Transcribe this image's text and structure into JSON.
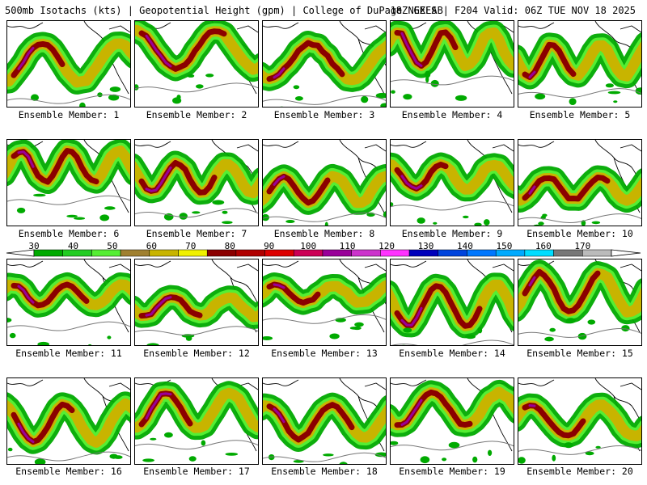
{
  "header": {
    "title_left": "500mb Isotachs (kts) | Geopotential Height (gpm) | College of DuPage NEXLAB",
    "title_right": "18Z GEFS | F204 Valid: 06Z TUE NOV 18 2025"
  },
  "panel_label_prefix": "Ensemble Member: ",
  "members": [
    "1",
    "2",
    "3",
    "4",
    "5",
    "6",
    "7",
    "8",
    "9",
    "10",
    "11",
    "12",
    "13",
    "14",
    "15",
    "16",
    "17",
    "18",
    "19",
    "20"
  ],
  "colorbar": {
    "ticks": [
      "30",
      "40",
      "50",
      "60",
      "70",
      "80",
      "90",
      "100",
      "110",
      "120",
      "130",
      "140",
      "150",
      "160",
      "170"
    ],
    "colors": [
      "#00aa00",
      "#22cc22",
      "#55ee33",
      "#a08030",
      "#c8b400",
      "#f0f000",
      "#8b0000",
      "#b00000",
      "#dd0000",
      "#cc0055",
      "#990099",
      "#cc33cc",
      "#ff33ff",
      "#0000bb",
      "#0044dd",
      "#0077ff",
      "#00aaff",
      "#00ddff",
      "#777777",
      "#bbbbbb"
    ]
  },
  "map_colors": {
    "land_outline": "#000000",
    "height_contour": "#777777",
    "wind_30": "#00aa00",
    "wind_50": "#55ee33",
    "wind_60": "#c8b400",
    "wind_80": "#8b0000",
    "wind_100": "#990099"
  }
}
